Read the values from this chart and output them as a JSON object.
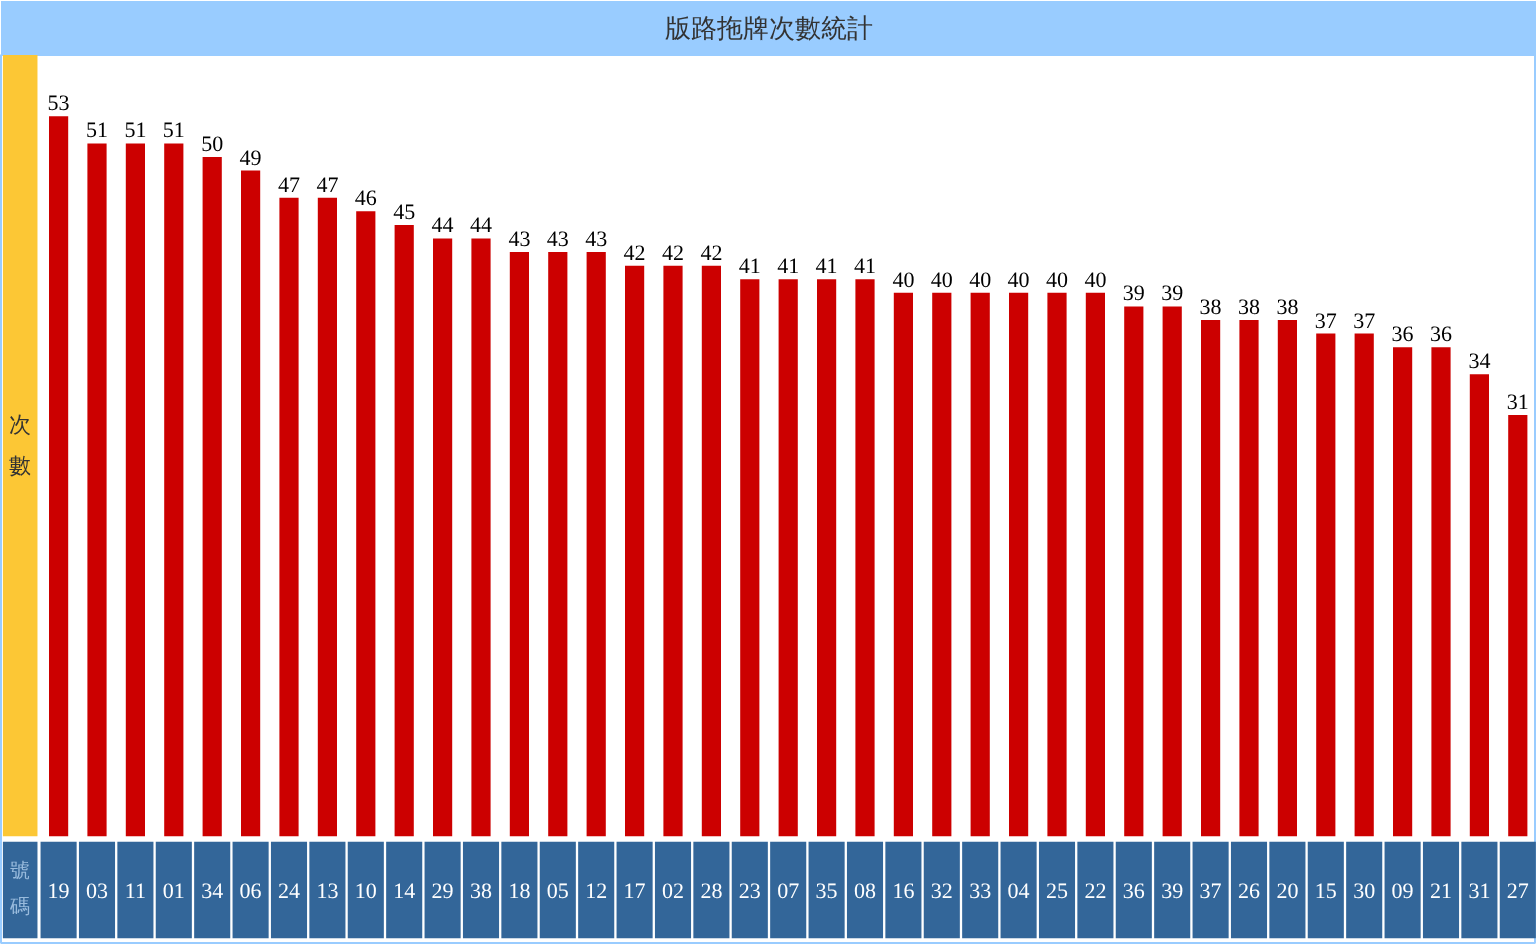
{
  "chart_data": {
    "type": "bar",
    "title": "版路拖牌次數統計",
    "xlabel": "號碼",
    "ylabel": "次數",
    "categories": [
      "19",
      "03",
      "11",
      "01",
      "34",
      "06",
      "24",
      "13",
      "10",
      "14",
      "29",
      "38",
      "18",
      "05",
      "12",
      "17",
      "02",
      "28",
      "23",
      "07",
      "35",
      "08",
      "16",
      "32",
      "33",
      "04",
      "25",
      "22",
      "36",
      "39",
      "37",
      "26",
      "20",
      "15",
      "30",
      "09",
      "21",
      "31",
      "27"
    ],
    "values": [
      53,
      51,
      51,
      51,
      50,
      49,
      47,
      47,
      46,
      45,
      44,
      44,
      43,
      43,
      43,
      42,
      42,
      42,
      41,
      41,
      41,
      41,
      40,
      40,
      40,
      40,
      40,
      40,
      39,
      39,
      38,
      38,
      38,
      37,
      37,
      36,
      36,
      34,
      31
    ],
    "color": "#cc0000",
    "data_labels": true
  }
}
